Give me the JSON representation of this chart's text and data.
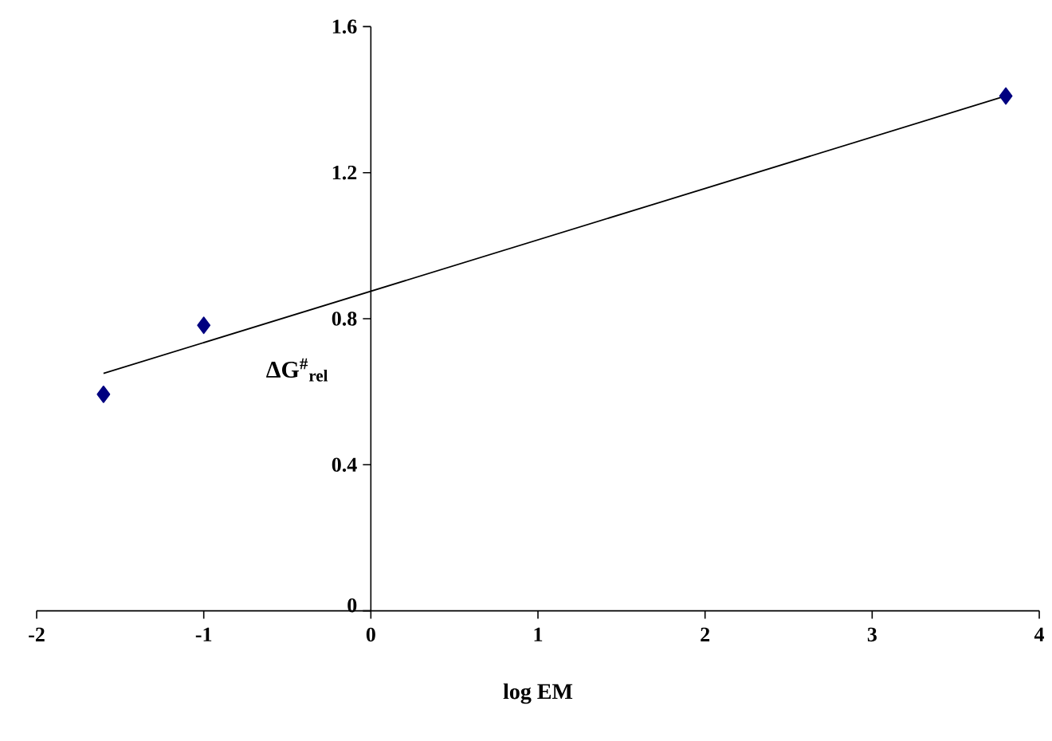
{
  "chart_data": {
    "type": "scatter",
    "xlabel": "log EM",
    "ylabel": "ΔG$^{#}$$_{rel}$",
    "xlim": [
      -2,
      4
    ],
    "ylim": [
      0,
      1.6
    ],
    "xticks": [
      -2,
      -1,
      0,
      1,
      2,
      3,
      4
    ],
    "yticks": [
      0,
      0.4,
      0.8,
      1.2,
      1.6
    ],
    "marker": "diamond",
    "grid": false,
    "series": [
      {
        "color": "#000080",
        "x": [
          -1.6,
          -1.0,
          3.8
        ],
        "values": [
          0.593,
          0.782,
          1.41
        ]
      },
      {
        "type": "line",
        "color": "#000000",
        "marker": "none",
        "x": [
          -1.6,
          3.8
        ],
        "values": [
          0.65,
          1.41
        ]
      }
    ]
  }
}
